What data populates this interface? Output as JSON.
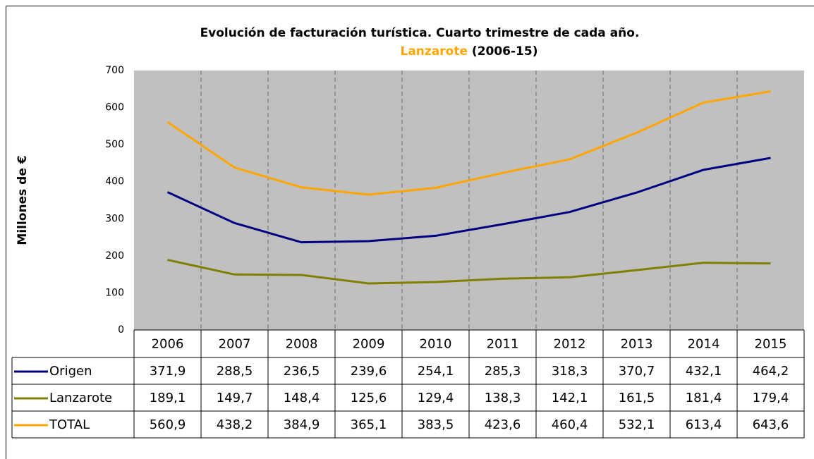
{
  "chart_data": {
    "type": "line",
    "title": "Evolución de facturación turística. Cuarto trimestre de cada año.",
    "subtitle": [
      "Lanzarote",
      "(2006-15)"
    ],
    "y_label": "Millones de €",
    "categories": [
      "2006",
      "2007",
      "2008",
      "2009",
      "2010",
      "2011",
      "2012",
      "2013",
      "2014",
      "2015"
    ],
    "series": [
      {
        "name": "Origen",
        "color": "#000080",
        "values": [
          371.9,
          288.5,
          236.5,
          239.6,
          254.1,
          285.3,
          318.3,
          370.7,
          432.1,
          464.2
        ],
        "value_labels": [
          "371,9",
          "288,5",
          "236,5",
          "239,6",
          "254,1",
          "285,3",
          "318,3",
          "370,7",
          "432,1",
          "464,2"
        ]
      },
      {
        "name": "Lanzarote",
        "color": "#808000",
        "values": [
          189.1,
          149.7,
          148.4,
          125.6,
          129.4,
          138.3,
          142.1,
          161.5,
          181.4,
          179.4
        ],
        "value_labels": [
          "189,1",
          "149,7",
          "148,4",
          "125,6",
          "129,4",
          "138,3",
          "142,1",
          "161,5",
          "181,4",
          "179,4"
        ]
      },
      {
        "name": "TOTAL",
        "color": "#ffa500",
        "values": [
          560.9,
          438.2,
          384.9,
          365.1,
          383.5,
          423.6,
          460.4,
          532.1,
          613.4,
          643.6
        ],
        "value_labels": [
          "560,9",
          "438,2",
          "384,9",
          "365,1",
          "383,5",
          "423,6",
          "460,4",
          "532,1",
          "613,4",
          "643,6"
        ]
      }
    ],
    "ylim": [
      0,
      700
    ],
    "yticks": [
      0,
      100,
      200,
      300,
      400,
      500,
      600,
      700
    ],
    "grid": false,
    "plot_background": "#c0c0c0"
  }
}
